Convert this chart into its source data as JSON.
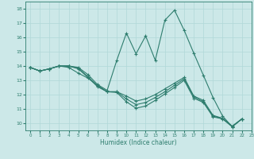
{
  "xlabel": "Humidex (Indice chaleur)",
  "xlim": [
    -0.5,
    23
  ],
  "ylim": [
    9.5,
    18.5
  ],
  "xticks": [
    0,
    1,
    2,
    3,
    4,
    5,
    6,
    7,
    8,
    9,
    10,
    11,
    12,
    13,
    14,
    15,
    16,
    17,
    18,
    19,
    20,
    21,
    22,
    23
  ],
  "yticks": [
    10,
    11,
    12,
    13,
    14,
    15,
    16,
    17,
    18
  ],
  "bg_color": "#cce8e8",
  "line_color": "#2e7d6e",
  "grid_color": "#b0d8d8",
  "lines": [
    {
      "x": [
        0,
        1,
        2,
        3,
        4,
        5,
        6,
        7,
        8,
        9,
        10,
        11,
        12,
        13,
        14,
        15,
        16,
        17,
        18,
        19,
        20,
        21,
        22
      ],
      "y": [
        13.9,
        13.65,
        13.8,
        14.0,
        13.9,
        13.5,
        13.15,
        12.65,
        12.2,
        12.15,
        11.5,
        11.05,
        11.2,
        11.6,
        12.05,
        12.5,
        13.0,
        11.75,
        11.45,
        10.45,
        10.3,
        9.75,
        10.3
      ]
    },
    {
      "x": [
        0,
        1,
        2,
        3,
        4,
        5,
        6,
        7,
        8,
        9,
        10,
        11,
        12,
        13,
        14,
        15,
        16,
        17,
        18,
        19,
        20,
        21,
        22
      ],
      "y": [
        13.9,
        13.65,
        13.8,
        14.0,
        14.0,
        13.8,
        13.2,
        12.55,
        12.2,
        12.2,
        11.9,
        11.55,
        11.7,
        12.0,
        12.4,
        12.8,
        13.2,
        11.9,
        11.6,
        10.55,
        10.35,
        9.8,
        10.3
      ]
    },
    {
      "x": [
        0,
        1,
        2,
        3,
        4,
        5,
        6,
        7,
        8,
        9,
        10,
        11,
        12,
        13,
        14,
        15,
        16,
        17,
        18,
        19,
        20,
        21,
        22
      ],
      "y": [
        13.9,
        13.65,
        13.8,
        14.0,
        14.0,
        13.9,
        13.4,
        12.7,
        12.3,
        14.4,
        16.3,
        14.85,
        16.1,
        14.4,
        17.2,
        17.9,
        16.5,
        14.9,
        13.35,
        11.8,
        10.5,
        9.75,
        10.3
      ]
    },
    {
      "x": [
        0,
        1,
        2,
        3,
        4,
        5,
        6,
        7,
        8,
        9,
        10,
        11,
        12,
        13,
        14,
        15,
        16,
        17,
        18,
        19,
        20,
        21,
        22
      ],
      "y": [
        13.9,
        13.65,
        13.8,
        14.0,
        14.0,
        13.85,
        13.25,
        12.6,
        12.2,
        12.2,
        11.7,
        11.3,
        11.45,
        11.8,
        12.2,
        12.65,
        13.1,
        11.85,
        11.5,
        10.5,
        10.32,
        9.78,
        10.3
      ]
    }
  ]
}
